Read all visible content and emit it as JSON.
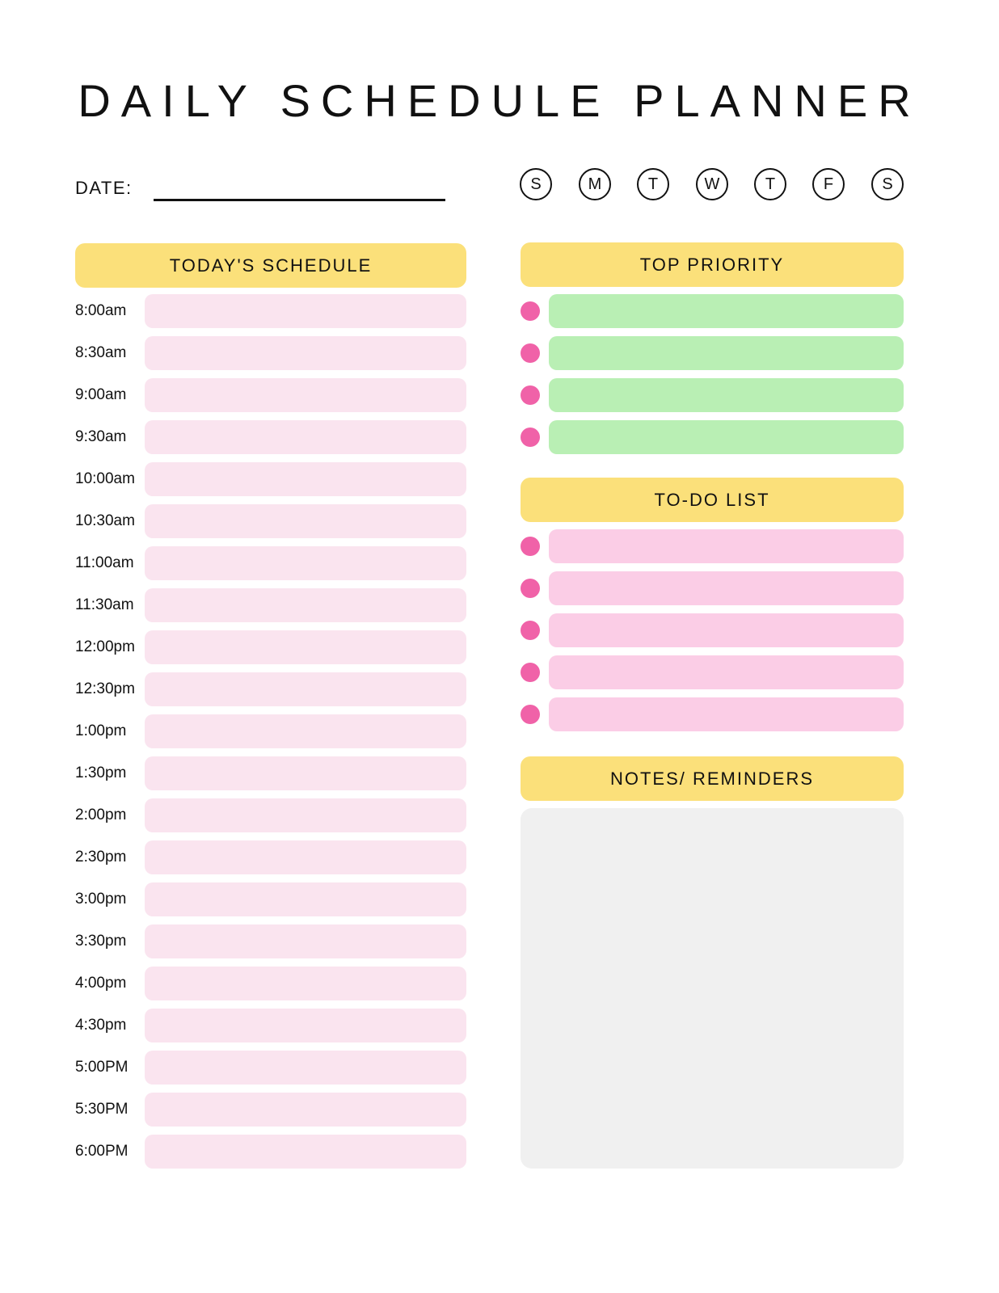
{
  "title": "DAILY SCHEDULE PLANNER",
  "date_label": "DATE:",
  "days": [
    "S",
    "M",
    "T",
    "W",
    "T",
    "F",
    "S"
  ],
  "schedule": {
    "header": "TODAY'S SCHEDULE",
    "times": [
      "8:00am",
      "8:30am",
      "9:00am",
      "9:30am",
      "10:00am",
      "10:30am",
      "11:00am",
      "11:30am",
      "12:00pm",
      "12:30pm",
      "1:00pm",
      "1:30pm",
      "2:00pm",
      "2:30pm",
      "3:00pm",
      "3:30pm",
      "4:00pm",
      "4:30pm",
      "5:00PM",
      "5:30PM",
      "6:00PM"
    ]
  },
  "priority": {
    "header": "TOP PRIORITY",
    "count": 4
  },
  "todo": {
    "header": "TO-DO LIST",
    "count": 5
  },
  "notes": {
    "header": "NOTES/ REMINDERS"
  },
  "colors": {
    "header_yellow": "#fbe07a",
    "slot_pink": "#fae4ef",
    "priority_green": "#b9efb4",
    "todo_pink": "#fbcde6",
    "bullet_pink": "#f062a8",
    "notes_gray": "#f0f0f0"
  }
}
